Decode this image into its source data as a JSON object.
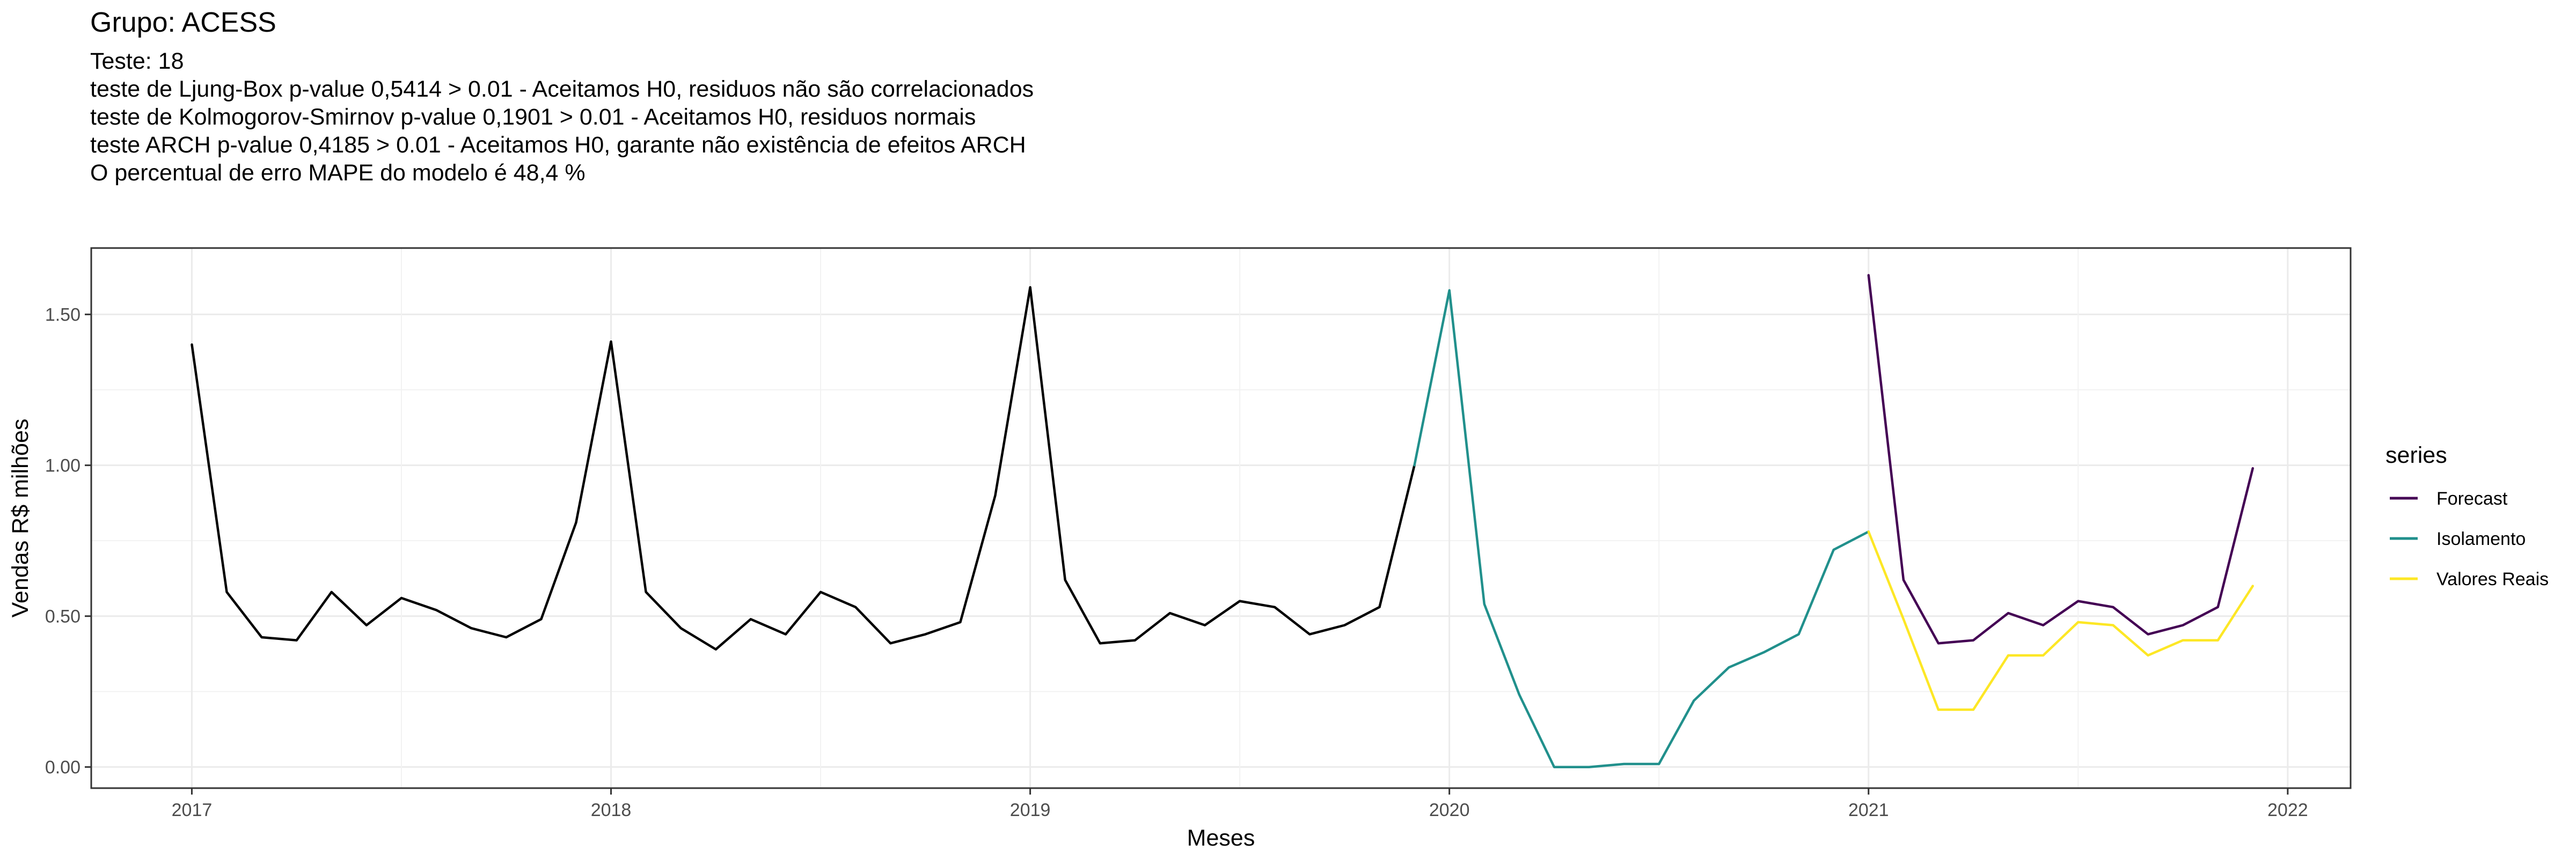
{
  "header": {
    "title": "Grupo: ACESS",
    "subtitle_lines": [
      "Teste: 18",
      "teste de Ljung-Box p-value 0,5414 > 0.01 - Aceitamos H0, residuos não são correlacionados",
      "teste de Kolmogorov-Smirnov p-value 0,1901 > 0.01 - Aceitamos H0, residuos normais",
      "teste ARCH p-value 0,4185 > 0.01 - Aceitamos H0, garante não existência de efeitos ARCH",
      "O percentual de erro MAPE do modelo é 48,4 %"
    ]
  },
  "chart_data": {
    "type": "line",
    "xlabel": "Meses",
    "ylabel": "Vendas R$ milhões",
    "xlim": [
      2016.76,
      2022.15
    ],
    "ylim": [
      -0.07,
      1.72
    ],
    "x_ticks": [
      2017,
      2018,
      2019,
      2020,
      2021,
      2022
    ],
    "x_tick_labels": [
      "2017",
      "2018",
      "2019",
      "2020",
      "2021",
      "2022"
    ],
    "y_ticks": [
      0,
      0.5,
      1.0,
      1.5
    ],
    "y_tick_labels": [
      "0.00",
      "0.50",
      "1.00",
      "1.50"
    ],
    "grid": true,
    "legend_title": "series",
    "legend_position": "right",
    "history": {
      "color": "#000000",
      "x": [
        "2017-01",
        "2017-02",
        "2017-03",
        "2017-04",
        "2017-05",
        "2017-06",
        "2017-07",
        "2017-08",
        "2017-09",
        "2017-10",
        "2017-11",
        "2017-12",
        "2018-01",
        "2018-02",
        "2018-03",
        "2018-04",
        "2018-05",
        "2018-06",
        "2018-07",
        "2018-08",
        "2018-09",
        "2018-10",
        "2018-11",
        "2018-12",
        "2019-01",
        "2019-02",
        "2019-03",
        "2019-04",
        "2019-05",
        "2019-06",
        "2019-07",
        "2019-08",
        "2019-09",
        "2019-10",
        "2019-11",
        "2019-12"
      ],
      "values": [
        1.4,
        0.58,
        0.43,
        0.42,
        0.58,
        0.47,
        0.56,
        0.52,
        0.46,
        0.43,
        0.49,
        0.81,
        1.41,
        0.58,
        0.46,
        0.39,
        0.49,
        0.44,
        0.58,
        0.53,
        0.41,
        0.44,
        0.48,
        0.9,
        1.59,
        0.62,
        0.41,
        0.42,
        0.51,
        0.47,
        0.55,
        0.53,
        0.44,
        0.47,
        0.53,
        1.0
      ]
    },
    "series": [
      {
        "name": "Forecast",
        "color": "#440154",
        "x": [
          "2021-01",
          "2021-02",
          "2021-03",
          "2021-04",
          "2021-05",
          "2021-06",
          "2021-07",
          "2021-08",
          "2021-09",
          "2021-10",
          "2021-11",
          "2021-12"
        ],
        "values": [
          1.63,
          0.62,
          0.41,
          0.42,
          0.51,
          0.47,
          0.55,
          0.53,
          0.44,
          0.47,
          0.53,
          0.99
        ]
      },
      {
        "name": "Isolamento",
        "color": "#21908C",
        "x": [
          "2019-12",
          "2020-01",
          "2020-02",
          "2020-03",
          "2020-04",
          "2020-05",
          "2020-06",
          "2020-07",
          "2020-08",
          "2020-09",
          "2020-10",
          "2020-11",
          "2020-12",
          "2021-01"
        ],
        "values": [
          1.0,
          1.58,
          0.54,
          0.24,
          0.0,
          0.0,
          0.01,
          0.01,
          0.22,
          0.33,
          0.38,
          0.44,
          0.72,
          0.78
        ]
      },
      {
        "name": "Valores Reais",
        "color": "#FDE725",
        "x": [
          "2021-01",
          "2021-02",
          "2021-03",
          "2021-04",
          "2021-05",
          "2021-06",
          "2021-07",
          "2021-08",
          "2021-09",
          "2021-10",
          "2021-11",
          "2021-12"
        ],
        "values": [
          0.78,
          0.49,
          0.19,
          0.19,
          0.37,
          0.37,
          0.48,
          0.47,
          0.37,
          0.42,
          0.42,
          0.6
        ]
      }
    ]
  }
}
